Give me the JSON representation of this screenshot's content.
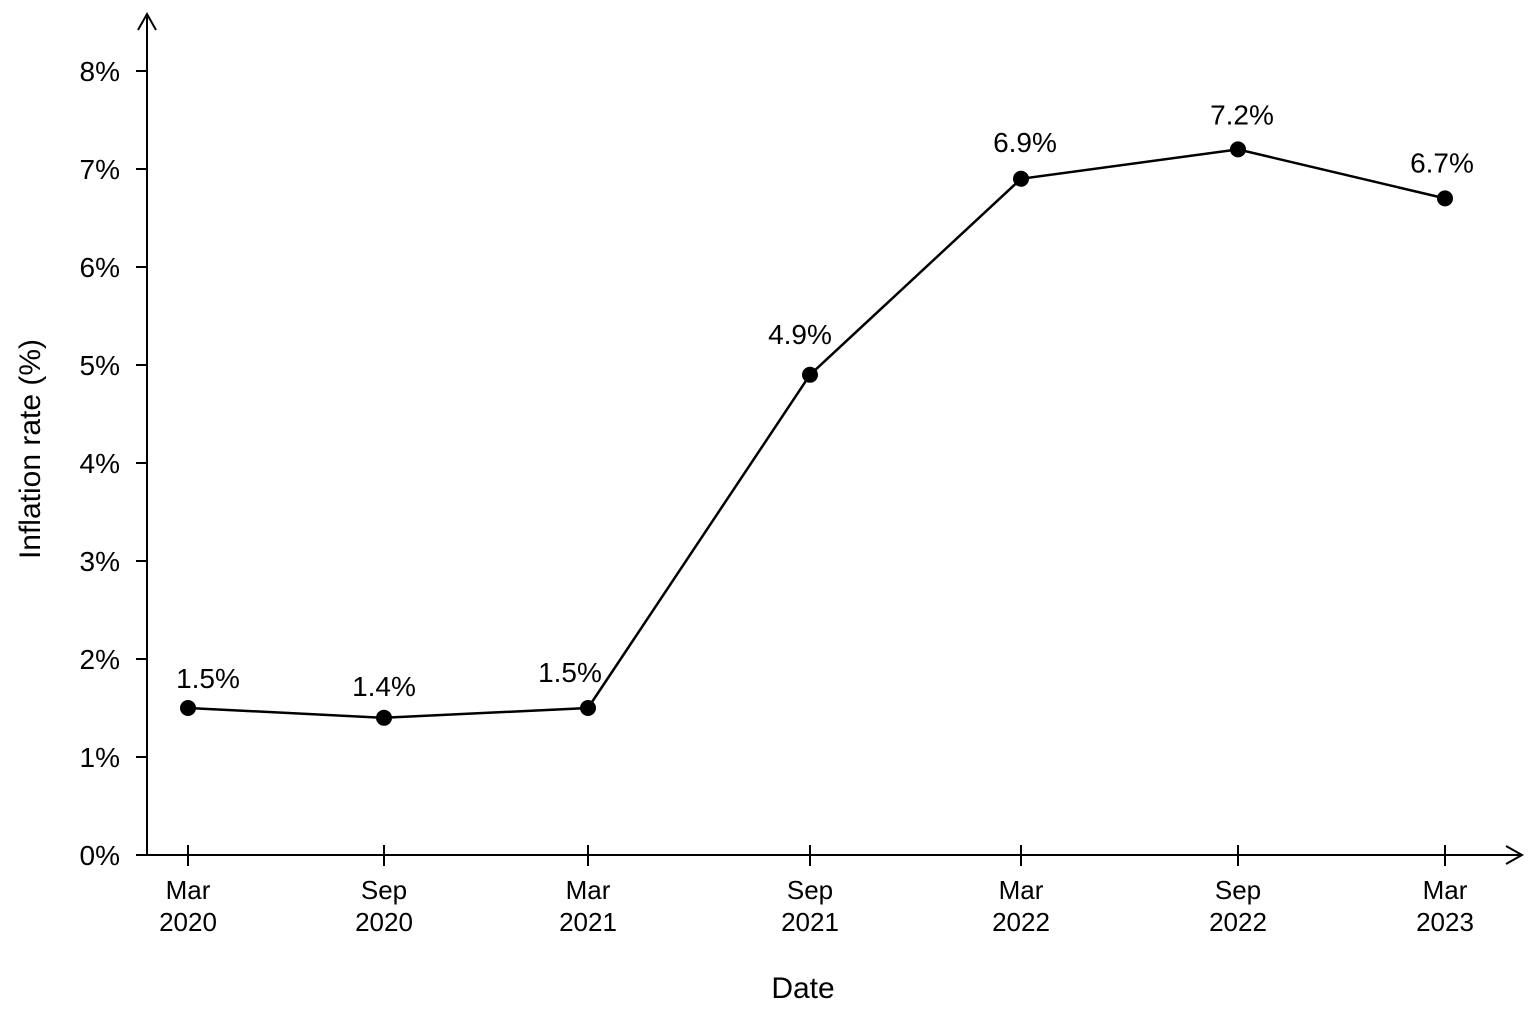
{
  "chart_data": {
    "type": "line",
    "xlabel": "Date",
    "ylabel": "Inflation rate (%)",
    "ylim": [
      0,
      8
    ],
    "y_ticks": [
      "0%",
      "1%",
      "2%",
      "3%",
      "4%",
      "5%",
      "6%",
      "7%",
      "8%"
    ],
    "categories": [
      [
        "Mar",
        "2020"
      ],
      [
        "Sep",
        "2020"
      ],
      [
        "Mar",
        "2021"
      ],
      [
        "Sep",
        "2021"
      ],
      [
        "Mar",
        "2022"
      ],
      [
        "Sep",
        "2022"
      ],
      [
        "Mar",
        "2023"
      ]
    ],
    "values": [
      1.5,
      1.4,
      1.5,
      4.9,
      6.9,
      7.2,
      6.7
    ],
    "data_labels": [
      "1.5%",
      "1.4%",
      "1.5%",
      "4.9%",
      "6.9%",
      "7.2%",
      "6.7%"
    ],
    "grid": false,
    "colors": {
      "line": "#000000",
      "marker": "#000000"
    }
  }
}
